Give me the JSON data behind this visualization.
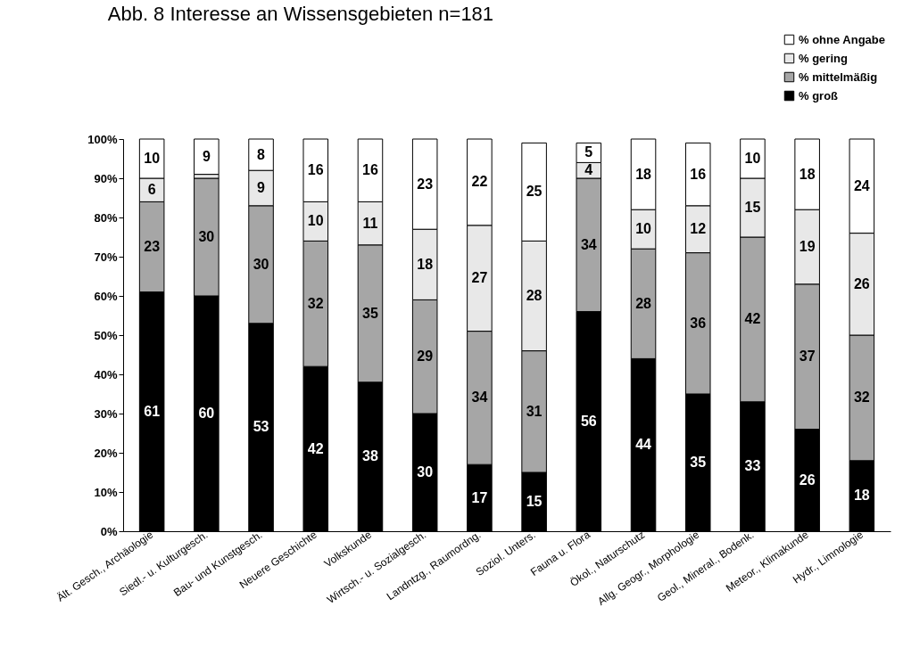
{
  "chart_data": {
    "type": "bar",
    "title": "Abb. 8   Interesse an Wissensgebieten   n=181",
    "stacked": true,
    "categories": [
      "Ält. Gesch., Archäologie",
      "Siedl.- u. Kulturgesch.",
      "Bau- und Kunstgesch.",
      "Neuere Geschichte",
      "Volkskunde",
      "Wirtsch.- u. Sozialgesch.",
      "Landntzg., Raumordng.",
      "Soziol. Unters.",
      "Fauna u. Flora",
      "Ökol., Naturschutz",
      "Allg. Geogr., Morphologie",
      "Geol., Mineral., Bodenk.",
      "Meteor., Klimakunde",
      "Hydr., Limnologie"
    ],
    "series": [
      {
        "name": "% groß",
        "color": "#000000",
        "values": [
          61,
          60,
          53,
          42,
          38,
          30,
          17,
          15,
          56,
          44,
          35,
          33,
          26,
          18
        ],
        "value_labels": [
          "61",
          "60",
          "53",
          "42",
          "38",
          "30",
          "17",
          "15",
          "56",
          "44",
          "35",
          "33",
          "26",
          "18"
        ]
      },
      {
        "name": "% mittelmäßig",
        "color": "#a6a6a6",
        "values": [
          23,
          30,
          30,
          32,
          35,
          29,
          34,
          31,
          34,
          28,
          36,
          42,
          37,
          32
        ],
        "value_labels": [
          "23",
          "30",
          "30",
          "32",
          "35",
          "29",
          "34",
          "31",
          "34",
          "28",
          "36",
          "42",
          "37",
          "32"
        ]
      },
      {
        "name": "% gering",
        "color": "#e8e8e8",
        "values": [
          6,
          1,
          9,
          10,
          11,
          18,
          27,
          28,
          4,
          10,
          12,
          15,
          19,
          26
        ],
        "value_labels": [
          "6",
          null,
          "9",
          "10",
          "11",
          "18",
          "27",
          "28",
          "4",
          "10",
          "12",
          "15",
          "19",
          "26"
        ]
      },
      {
        "name": "% ohne Angabe",
        "color": "#ffffff",
        "values": [
          10,
          9,
          8,
          16,
          16,
          23,
          22,
          25,
          5,
          18,
          16,
          10,
          18,
          24
        ],
        "value_labels": [
          "10",
          "9",
          "8",
          "16",
          "16",
          "23",
          "22",
          "25",
          "5",
          "18",
          "16",
          "10",
          "18",
          "24"
        ]
      }
    ],
    "ylim": [
      0,
      100
    ],
    "yticks": [
      {
        "value": 0,
        "label": "0%"
      },
      {
        "value": 10,
        "label": "10%"
      },
      {
        "value": 20,
        "label": "20%"
      },
      {
        "value": 30,
        "label": "30%"
      },
      {
        "value": 40,
        "label": "40%"
      },
      {
        "value": 50,
        "label": "50%"
      },
      {
        "value": 60,
        "label": "60%"
      },
      {
        "value": 70,
        "label": "70%"
      },
      {
        "value": 80,
        "label": "80%"
      },
      {
        "value": 90,
        "label": "90%"
      },
      {
        "value": 100,
        "label": "100%"
      }
    ],
    "legend": "top right"
  }
}
